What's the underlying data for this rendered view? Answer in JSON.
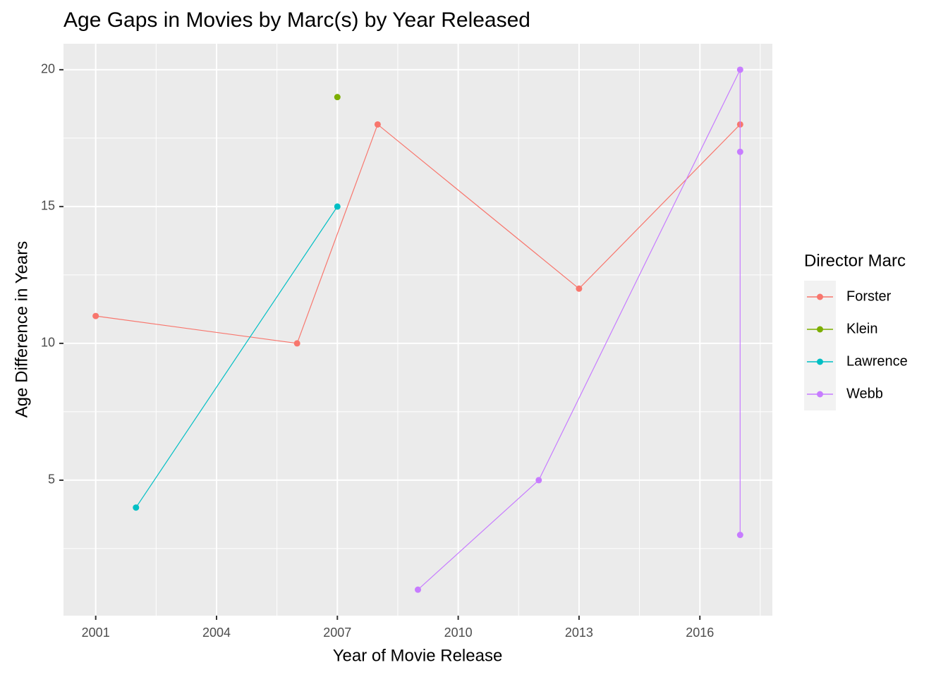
{
  "chart_data": {
    "type": "line",
    "title": "Age Gaps in Movies by Marc(s) by Year Released",
    "x_label": "Year of Movie Release",
    "y_label": "Age Difference in Years",
    "legend_title": "Director Marc",
    "legend_position": "right",
    "grid": true,
    "xlim": [
      2000.2,
      2017.8
    ],
    "xticks": [
      2001,
      2004,
      2007,
      2010,
      2013,
      2016
    ],
    "ylim": [
      0.05,
      20.95
    ],
    "yticks": [
      5,
      10,
      15,
      20
    ],
    "series": [
      {
        "name": "Forster",
        "color": "#F8766D",
        "x": [
          2001,
          2006,
          2008,
          2013,
          2017
        ],
        "values": [
          11,
          10,
          18,
          12,
          18
        ]
      },
      {
        "name": "Klein",
        "color": "#7CAE00",
        "x": [
          2007
        ],
        "values": [
          19
        ]
      },
      {
        "name": "Lawrence",
        "color": "#00BFC4",
        "x": [
          2002,
          2007
        ],
        "values": [
          4,
          15
        ]
      },
      {
        "name": "Webb",
        "color": "#C77CFF",
        "x": [
          2009,
          2012,
          2017,
          2017,
          2017
        ],
        "values": [
          1,
          5,
          20,
          17,
          3
        ]
      }
    ]
  }
}
